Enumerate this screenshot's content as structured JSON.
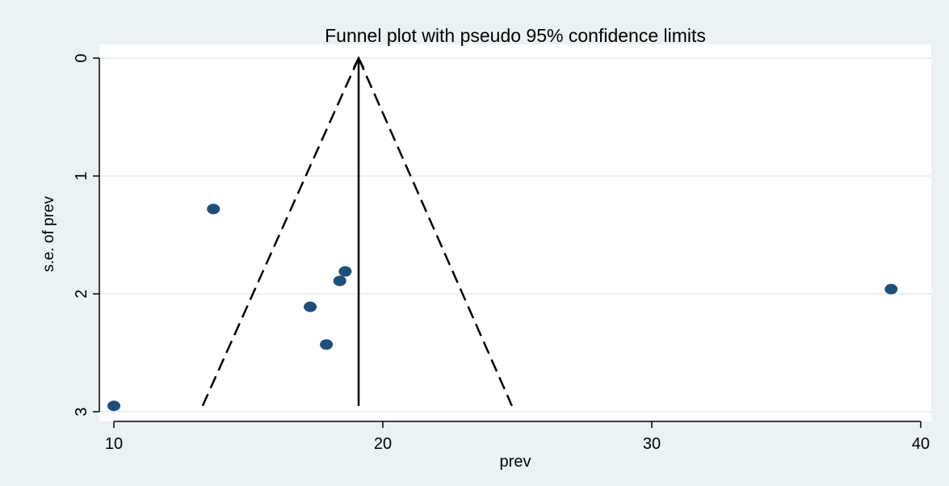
{
  "chart_data": {
    "type": "scatter",
    "title": "Funnel plot with pseudo 95% confidence limits",
    "xlabel": "prev",
    "ylabel": "s.e. of prev",
    "xlim": [
      9.6,
      40.6
    ],
    "ylim": [
      0,
      3.08
    ],
    "y_reversed": true,
    "grid": true,
    "x_ticks": [
      10,
      20,
      30,
      40
    ],
    "y_ticks": [
      0,
      1,
      2,
      3
    ],
    "series": [
      {
        "points": [
          {
            "x": 10.0,
            "y": 2.95
          },
          {
            "x": 13.7,
            "y": 1.28
          },
          {
            "x": 17.3,
            "y": 2.11
          },
          {
            "x": 17.9,
            "y": 2.43
          },
          {
            "x": 18.4,
            "y": 1.89
          },
          {
            "x": 18.6,
            "y": 1.81
          },
          {
            "x": 38.9,
            "y": 1.96
          }
        ],
        "color": "#1f4e79"
      }
    ],
    "pooled_estimate": 19.1,
    "ci_lines": {
      "left": [
        {
          "x": 19.1,
          "y": 0
        },
        {
          "x": 13.3,
          "y": 2.95
        }
      ],
      "right": [
        {
          "x": 19.1,
          "y": 0
        },
        {
          "x": 24.8,
          "y": 2.95
        }
      ]
    },
    "colors": {
      "outer_background": "#eaf2f3",
      "plot_background": "#ffffff",
      "grid": "#e3ecee",
      "marker": "#1f4e79",
      "line": "#000000"
    }
  }
}
